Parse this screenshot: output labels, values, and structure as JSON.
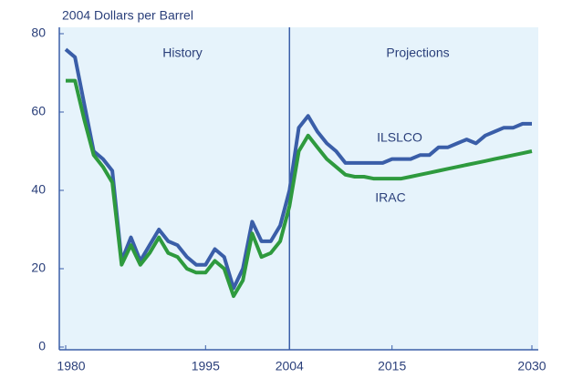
{
  "chart_data": {
    "type": "line",
    "ylabel": "2004 Dollars per Barrel",
    "annotations": [
      "History",
      "Projections"
    ],
    "x": [
      1980,
      1981,
      1982,
      1983,
      1984,
      1985,
      1986,
      1987,
      1988,
      1989,
      1990,
      1991,
      1992,
      1993,
      1994,
      1995,
      1996,
      1997,
      1998,
      1999,
      2000,
      2001,
      2002,
      2003,
      2004,
      2005,
      2006,
      2007,
      2008,
      2009,
      2010,
      2011,
      2012,
      2013,
      2014,
      2015,
      2016,
      2017,
      2018,
      2019,
      2020,
      2021,
      2022,
      2023,
      2024,
      2025,
      2026,
      2027,
      2028,
      2029,
      2030
    ],
    "series": [
      {
        "name": "ILSLCO",
        "color": "#3a5ea8",
        "values": [
          76,
          74,
          62,
          50,
          48,
          45,
          22,
          28,
          22,
          26,
          30,
          27,
          26,
          23,
          21,
          21,
          25,
          23,
          15,
          20,
          32,
          27,
          27,
          31,
          40,
          56,
          59,
          55,
          52,
          50,
          47,
          47,
          47,
          47,
          47,
          48,
          48,
          48,
          49,
          49,
          51,
          51,
          52,
          53,
          52,
          54,
          55,
          56,
          56,
          57,
          57
        ]
      },
      {
        "name": "IRAC",
        "color": "#2e9a3e",
        "values": [
          68,
          68,
          58,
          49,
          46,
          42,
          21,
          26,
          21,
          24,
          28,
          24,
          23,
          20,
          19,
          19,
          22,
          20,
          13,
          17,
          29,
          23,
          24,
          27,
          36,
          50,
          54,
          51,
          48,
          46,
          44,
          43.5,
          43.5,
          43,
          43,
          43,
          43,
          43.5,
          44,
          44.5,
          45,
          45.5,
          46,
          46.5,
          47,
          47.5,
          48,
          48.5,
          49,
          49.5,
          50
        ]
      }
    ],
    "xlim": [
      1980,
      2030
    ],
    "xticks": [
      1980,
      1995,
      2004,
      2015,
      2030
    ],
    "ylim": [
      0,
      80
    ],
    "yticks": [
      0,
      20,
      40,
      60,
      80
    ],
    "vlines": [
      2004
    ]
  }
}
